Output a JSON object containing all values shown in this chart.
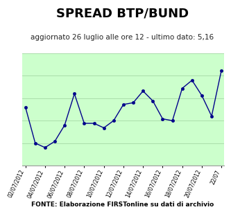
{
  "title": "SPREAD BTP/BUND",
  "subtitle": "aggiornato 26 luglio alle ore 12 - ultimo dato: 5,16",
  "fonte": "FONTE: Elaborazione FIRSTonline su dati di archivio",
  "x_labels": [
    "02/07/2012",
    "04/07/2012",
    "06/07/2012",
    "08/07/2012",
    "10/07/2012",
    "12/07/2012",
    "14/07/2012",
    "16/07/2012",
    "18/07/2012",
    "20/07/2012",
    "22/07"
  ],
  "y_values": [
    4.75,
    4.35,
    4.3,
    4.37,
    4.55,
    4.9,
    4.57,
    4.57,
    4.52,
    4.6,
    4.78,
    4.8,
    4.93,
    4.82,
    4.62,
    4.6,
    4.96,
    5.05,
    4.88,
    4.65,
    5.16
  ],
  "x_data": [
    0,
    1,
    2,
    3,
    4,
    5,
    6,
    7,
    8,
    9,
    10,
    11,
    12,
    13,
    14,
    15,
    16,
    17,
    18,
    19,
    20
  ],
  "line_color": "#00008B",
  "marker_color": "#00008B",
  "bg_color": "#ccffcc",
  "outer_bg": "#ffffff",
  "ylim_min": 4.1,
  "ylim_max": 5.35,
  "title_fontsize": 13,
  "subtitle_fontsize": 7.5,
  "fonte_fontsize": 6.5,
  "grid_color": "#aaddaa",
  "grid_linewidth": 0.7,
  "n_gridlines": 6
}
